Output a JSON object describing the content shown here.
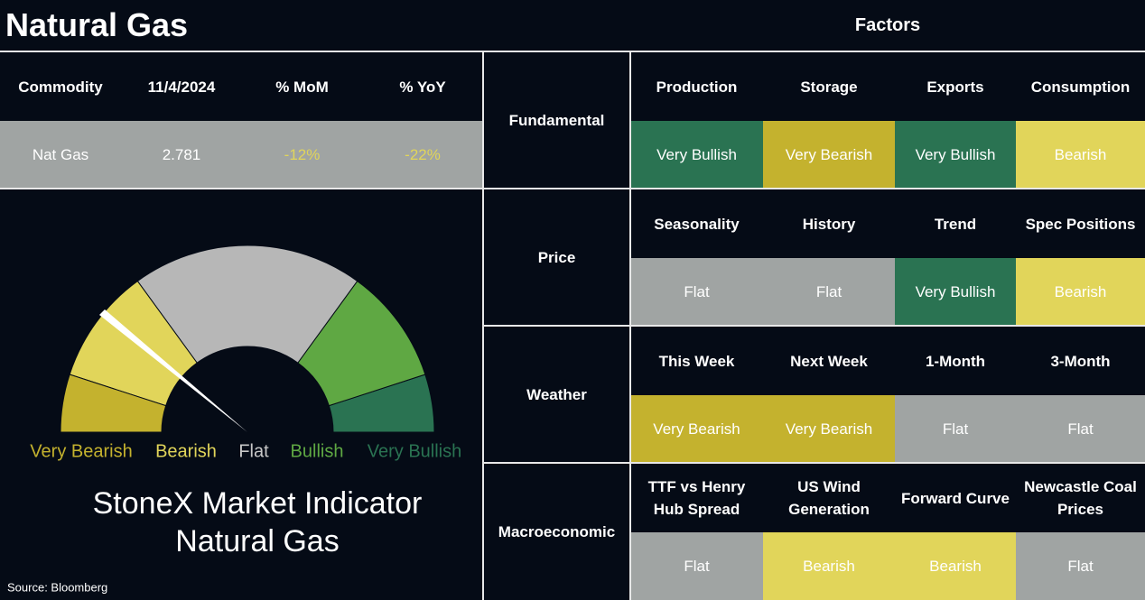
{
  "header": {
    "title": "Natural Gas",
    "factors_title": "Factors"
  },
  "table": {
    "columns": [
      "Commodity",
      "11/4/2024",
      "% MoM",
      "% YoY"
    ],
    "rows": [
      [
        "Nat Gas",
        "2.781",
        "-12%",
        "-22%"
      ]
    ]
  },
  "gauge": {
    "segments": [
      {
        "label": "Very Bearish",
        "color": "#c4b22e",
        "label_color": "#c4b22e"
      },
      {
        "label": "Bearish",
        "color": "#e1d55a",
        "label_color": "#e1d55a"
      },
      {
        "label": "Flat",
        "color": "#b7b7b7",
        "label_color": "#c8c8c8"
      },
      {
        "label": "Bullish",
        "color": "#5fa843",
        "label_color": "#5fa843"
      },
      {
        "label": "Very Bullish",
        "color": "#2a7352",
        "label_color": "#2a7352"
      }
    ]
  },
  "indicator": {
    "title": "StoneX Market Indicator",
    "subtitle": "Natural Gas"
  },
  "source": "Source: Bloomberg",
  "groups": [
    {
      "name": "Fundamental",
      "factors": [
        {
          "name": "Production",
          "signal": "Very Bullish",
          "color": "#2a7352"
        },
        {
          "name": "Storage",
          "signal": "Very Bearish",
          "color": "#c4b22e"
        },
        {
          "name": "Exports",
          "signal": "Very Bullish",
          "color": "#2a7352"
        },
        {
          "name": "Consumption",
          "signal": "Bearish",
          "color": "#e1d55a"
        }
      ]
    },
    {
      "name": "Price",
      "factors": [
        {
          "name": "Seasonality",
          "signal": "Flat",
          "color": "#a0a4a3"
        },
        {
          "name": "History",
          "signal": "Flat",
          "color": "#a0a4a3"
        },
        {
          "name": "Trend",
          "signal": "Very Bullish",
          "color": "#2a7352"
        },
        {
          "name": "Spec Positions",
          "signal": "Bearish",
          "color": "#e1d55a"
        }
      ]
    },
    {
      "name": "Weather",
      "factors": [
        {
          "name": "This Week",
          "signal": "Very Bearish",
          "color": "#c4b22e"
        },
        {
          "name": "Next Week",
          "signal": "Very Bearish",
          "color": "#c4b22e"
        },
        {
          "name": "1-Month",
          "signal": "Flat",
          "color": "#a0a4a3"
        },
        {
          "name": "3-Month",
          "signal": "Flat",
          "color": "#a0a4a3"
        }
      ]
    },
    {
      "name": "Macroeconomic",
      "factors": [
        {
          "name": "TTF vs Henry Hub Spread",
          "signal": "Flat",
          "color": "#a0a4a3"
        },
        {
          "name": "US Wind Generation",
          "signal": "Bearish",
          "color": "#e1d55a"
        },
        {
          "name": "Forward Curve",
          "signal": "Bearish",
          "color": "#e1d55a"
        },
        {
          "name": "Newcastle Coal Prices",
          "signal": "Flat",
          "color": "#a0a4a3"
        }
      ]
    }
  ]
}
